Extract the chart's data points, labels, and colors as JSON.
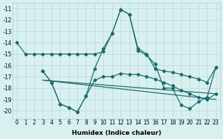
{
  "lines": [
    {
      "x": [
        0,
        1,
        2,
        3,
        4,
        5,
        6,
        7,
        8,
        9,
        10,
        11,
        12,
        13,
        14,
        15,
        16,
        17,
        18,
        19,
        20,
        21,
        22,
        23
      ],
      "y": [
        -14,
        -15,
        -15,
        -15,
        -15,
        -15,
        -15,
        -15,
        -15,
        -15,
        -14.8,
        -13.2,
        -11.1,
        -11.5,
        -14.5,
        -15.0,
        -16.3,
        -16.5,
        -16.6,
        -16.8,
        -17.0,
        -17.2,
        -17.5,
        -16.2
      ]
    },
    {
      "x": [
        3,
        4,
        5,
        6,
        7,
        8,
        9,
        10,
        11,
        12,
        13,
        14,
        15,
        16,
        17,
        18,
        19,
        20,
        21,
        22,
        23
      ],
      "y": [
        -16.5,
        -17.5,
        -19.4,
        -19.7,
        -20.1,
        -18.7,
        -16.3,
        -14.5,
        -13.2,
        -11.1,
        -11.5,
        -14.7,
        -15.1,
        -15.9,
        -18.0,
        -18.0,
        -19.5,
        -19.8,
        -19.2,
        -18.8,
        -16.2
      ]
    },
    {
      "x": [
        3,
        4,
        5,
        6,
        7,
        8,
        9,
        10,
        11,
        12,
        13,
        14,
        15,
        16,
        17,
        18,
        19,
        20,
        21,
        22,
        23
      ],
      "y": [
        -16.5,
        -17.5,
        -19.4,
        -19.7,
        -20.1,
        -18.7,
        -17.3,
        -17.0,
        -17.0,
        -16.7,
        -16.8,
        -16.8,
        -17.0,
        -17.2,
        -17.5,
        -17.8,
        -18.2,
        -18.5,
        -18.8,
        -19.0,
        -18.5
      ]
    },
    {
      "x": [
        3,
        23
      ],
      "y": [
        -17.3,
        -18.5
      ]
    },
    {
      "x": [
        3,
        23
      ],
      "y": [
        -17.3,
        -19.0
      ]
    }
  ],
  "line_color": "#1a6b6b",
  "marker": "D",
  "markersize": 2.2,
  "linewidth": 0.9,
  "background_color": "#d8f0f0",
  "grid_color": "#b8d8d8",
  "xlabel": "Humidex (Indice chaleur)",
  "ylim": [
    -20.7,
    -10.5
  ],
  "xlim": [
    -0.5,
    23.5
  ],
  "yticks": [
    -11,
    -12,
    -13,
    -14,
    -15,
    -16,
    -17,
    -18,
    -19,
    -20
  ],
  "xticks": [
    0,
    1,
    2,
    3,
    4,
    5,
    6,
    7,
    8,
    9,
    10,
    11,
    12,
    13,
    14,
    15,
    16,
    17,
    18,
    19,
    20,
    21,
    22,
    23
  ],
  "xlabel_fontsize": 6.5,
  "tick_fontsize": 5.5
}
